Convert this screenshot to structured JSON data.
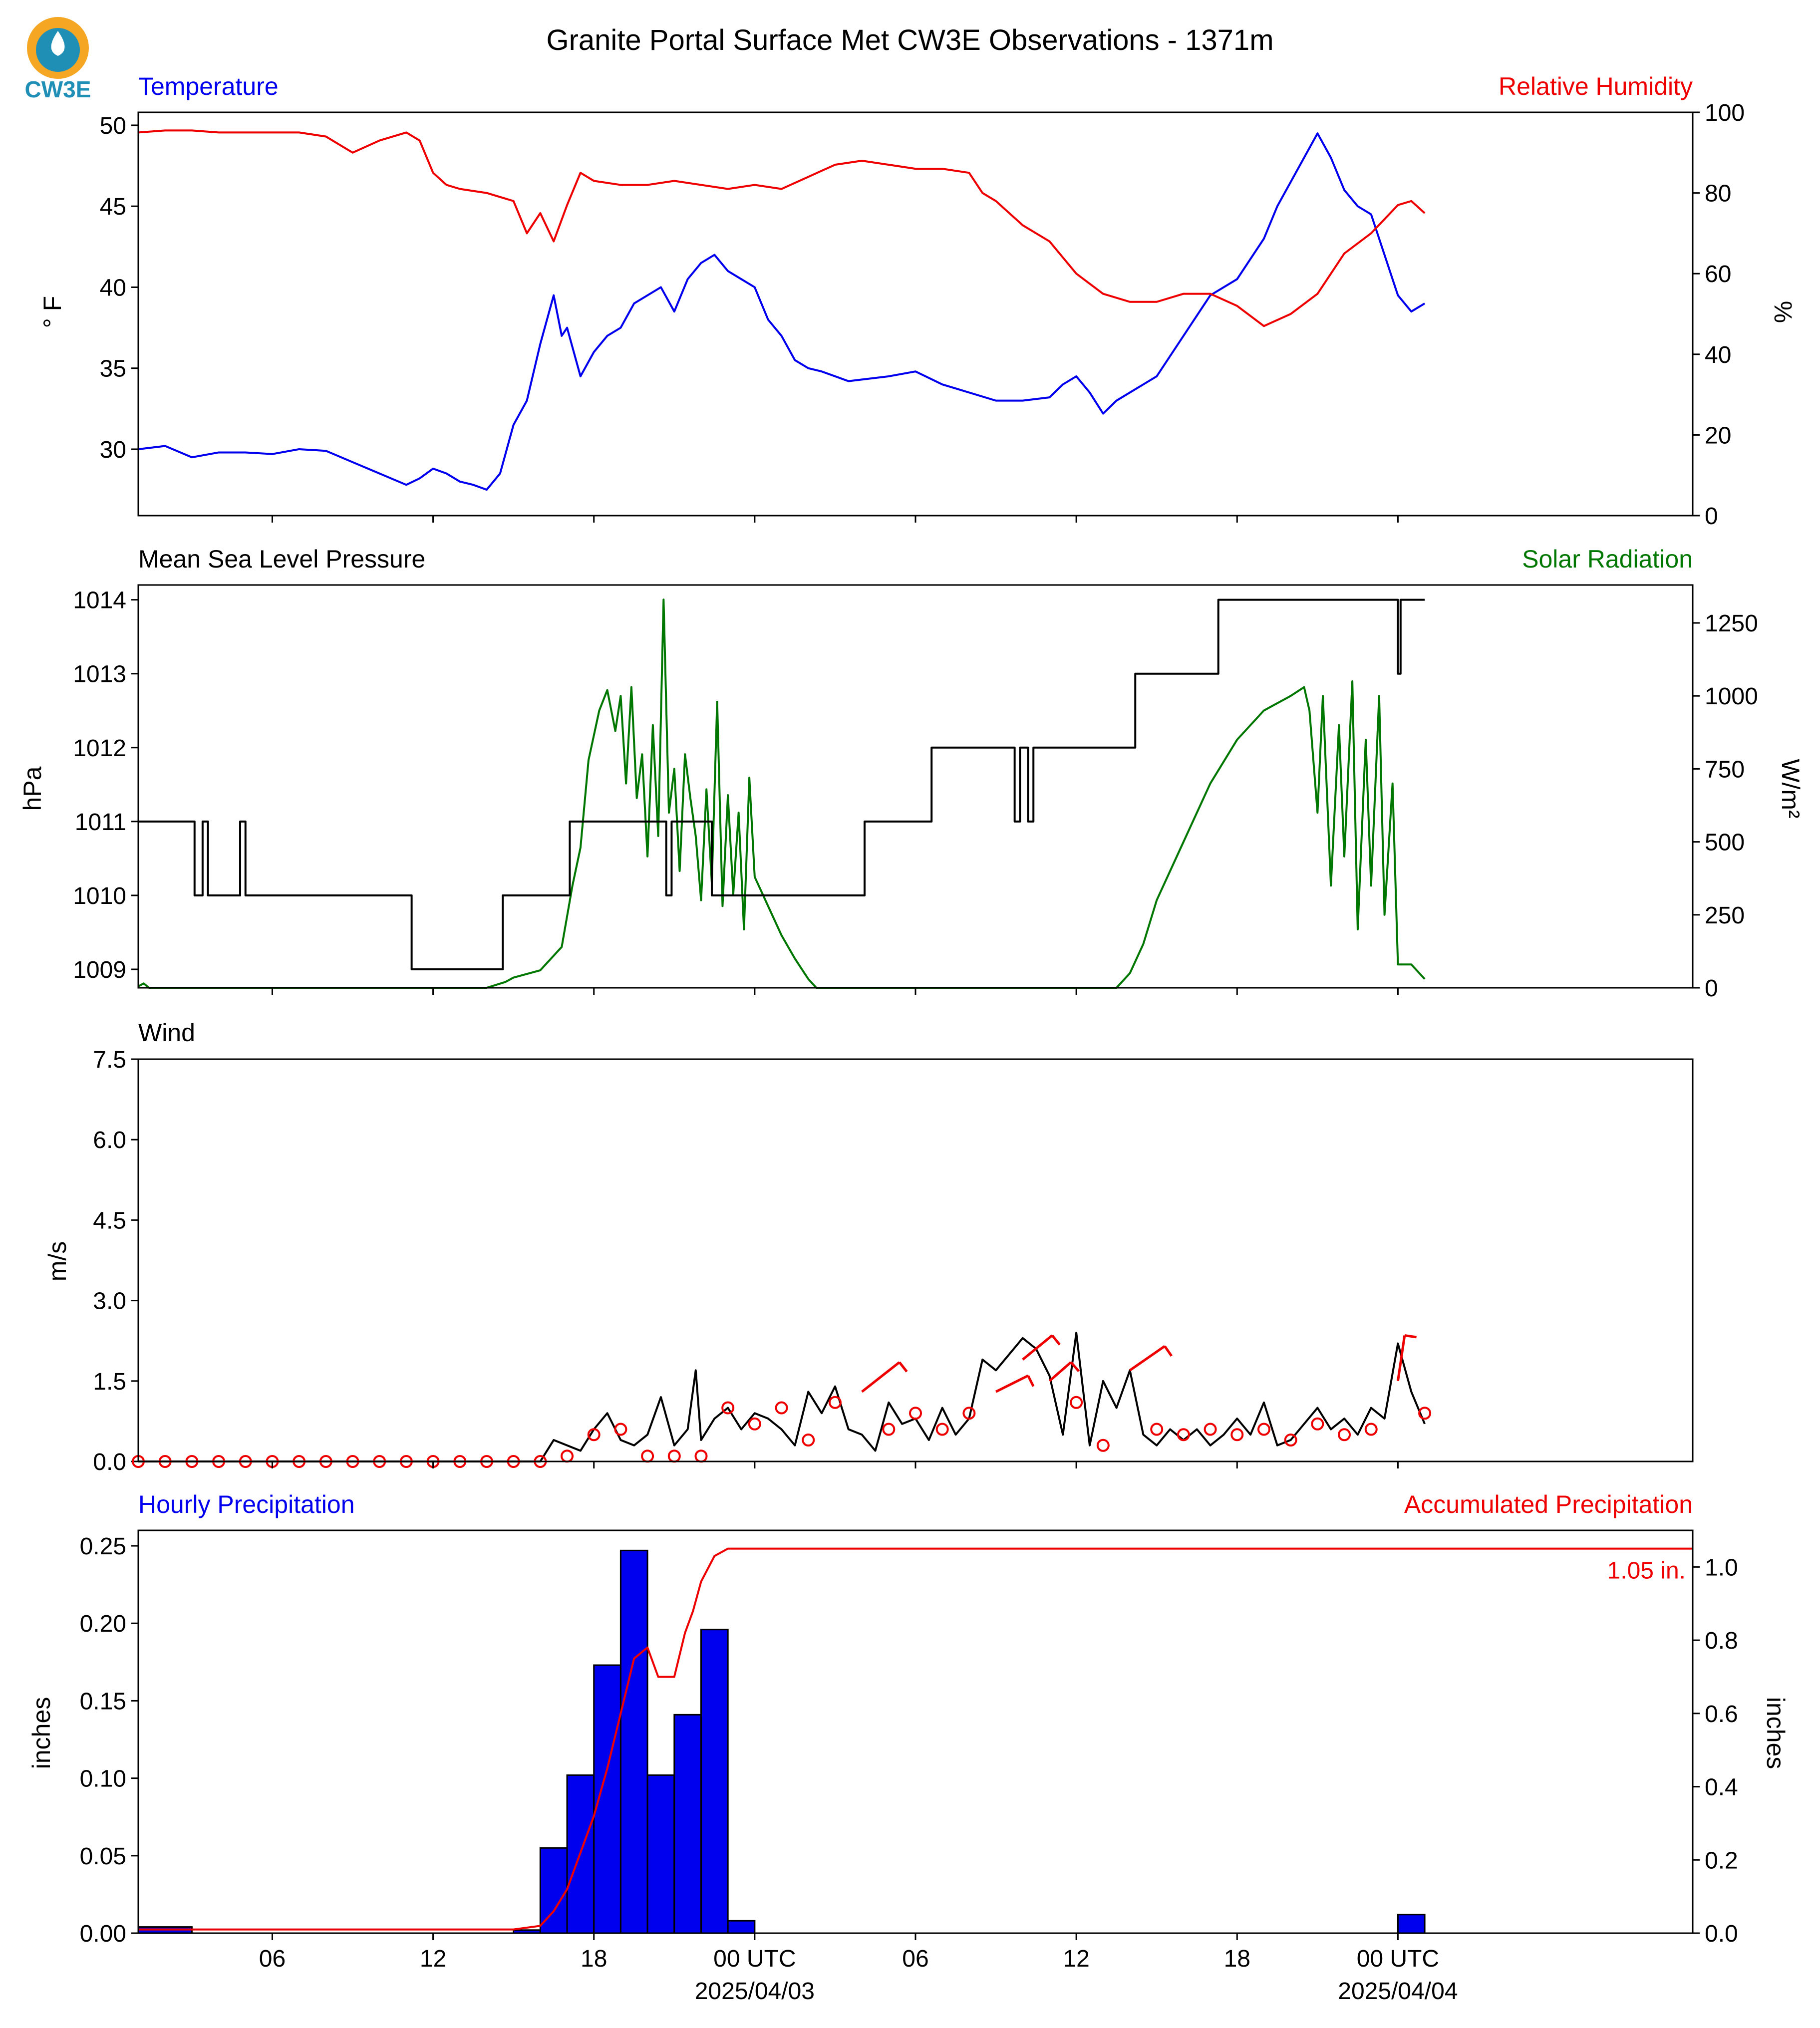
{
  "logo": {
    "text": "CW3E",
    "colors": {
      "ring": "#f5a623",
      "body": "#1f8fb5"
    }
  },
  "title": "Granite Portal Surface Met CW3E Observations - 1371m",
  "time_axis": {
    "range_hours": [
      -23,
      35
    ],
    "ticks": [
      {
        "hour": -18,
        "label": "06",
        "sublabel": ""
      },
      {
        "hour": -12,
        "label": "12",
        "sublabel": ""
      },
      {
        "hour": -6,
        "label": "18",
        "sublabel": ""
      },
      {
        "hour": 0,
        "label": "00 UTC",
        "sublabel": "2025/04/03"
      },
      {
        "hour": 6,
        "label": "06",
        "sublabel": ""
      },
      {
        "hour": 12,
        "label": "12",
        "sublabel": ""
      },
      {
        "hour": 18,
        "label": "18",
        "sublabel": ""
      },
      {
        "hour": 24,
        "label": "00 UTC",
        "sublabel": "2025/04/04"
      }
    ]
  },
  "chart_data": [
    {
      "type": "line",
      "panel": "temperature-humidity",
      "title_left": "Temperature",
      "title_right": "Relative Humidity",
      "ylabel": "° F",
      "ylabel_right": "%",
      "ylim": [
        25.9,
        50.8
      ],
      "ylim_right": [
        0,
        100
      ],
      "yticks": [
        30,
        35,
        40,
        45,
        50
      ],
      "yticks_right": [
        0,
        20,
        40,
        60,
        80,
        100
      ],
      "series": [
        {
          "role": "temperature",
          "axis": "left",
          "color": "#0000ee",
          "x": [
            -23,
            -22,
            -21,
            -20,
            -19,
            -18,
            -17,
            -16,
            -15,
            -14,
            -13,
            -12.5,
            -12,
            -11.5,
            -11,
            -10.5,
            -10,
            -9.5,
            -9,
            -8.5,
            -8,
            -7.5,
            -7.2,
            -7,
            -6.5,
            -6,
            -5.5,
            -5,
            -4.5,
            -4,
            -3.5,
            -3,
            -2.5,
            -2,
            -1.5,
            -1,
            -0.5,
            0,
            0.5,
            1,
            1.5,
            2,
            2.5,
            3,
            3.5,
            4,
            5,
            6,
            7,
            8,
            9,
            10,
            11,
            11.5,
            12,
            12.5,
            13,
            13.5,
            14,
            15,
            16,
            17,
            18,
            19,
            19.5,
            20,
            20.5,
            21,
            21.5,
            22,
            22.5,
            23,
            23.5,
            24,
            24.5,
            25
          ],
          "y": [
            30,
            30.2,
            29.5,
            29.8,
            29.8,
            29.7,
            30,
            29.9,
            29.2,
            28.5,
            27.8,
            28.2,
            28.8,
            28.5,
            28,
            27.8,
            27.5,
            28.5,
            31.5,
            33,
            36.5,
            39.5,
            37,
            37.5,
            34.5,
            36,
            37,
            37.5,
            39,
            39.5,
            40,
            38.5,
            40.5,
            41.5,
            42,
            41,
            40.5,
            40,
            38,
            37,
            35.5,
            35,
            34.8,
            34.5,
            34.2,
            34.3,
            34.5,
            34.8,
            34,
            33.5,
            33,
            33,
            33.2,
            34,
            34.5,
            33.5,
            32.2,
            33,
            33.5,
            34.5,
            37,
            39.5,
            40.5,
            43,
            45,
            46.5,
            48,
            49.5,
            48,
            46,
            45,
            44.5,
            42,
            39.5,
            38.5,
            39
          ]
        },
        {
          "role": "relative-humidity",
          "axis": "right",
          "color": "#ee0000",
          "x": [
            -23,
            -22,
            -21,
            -20,
            -19,
            -18,
            -17,
            -16,
            -15,
            -14,
            -13,
            -12.5,
            -12,
            -11.5,
            -11,
            -10,
            -9,
            -8.5,
            -8,
            -7.5,
            -7,
            -6.5,
            -6,
            -5,
            -4,
            -3,
            -2,
            -1,
            0,
            1,
            2,
            3,
            4,
            5,
            6,
            7,
            8,
            8.5,
            9,
            10,
            11,
            12,
            13,
            14,
            15,
            16,
            17,
            18,
            19,
            20,
            21,
            22,
            23,
            24,
            24.5,
            25
          ],
          "y": [
            95,
            95.5,
            95.5,
            95,
            95,
            95,
            95,
            94,
            90,
            93,
            95,
            93,
            85,
            82,
            81,
            80,
            78,
            70,
            75,
            68,
            77,
            85,
            83,
            82,
            82,
            83,
            82,
            81,
            82,
            81,
            84,
            87,
            88,
            87,
            86,
            86,
            85,
            80,
            78,
            72,
            68,
            60,
            55,
            53,
            53,
            55,
            55,
            52,
            47,
            50,
            55,
            65,
            70,
            77,
            78,
            75
          ]
        }
      ]
    },
    {
      "type": "line",
      "panel": "pressure-solar",
      "title_left": "Mean Sea Level Pressure",
      "title_right": "Solar Radiation",
      "ylabel": "hPa",
      "ylabel_right": "W/m²",
      "ylim": [
        1008.75,
        1014.2
      ],
      "ylim_right": [
        0,
        1380
      ],
      "yticks": [
        1009,
        1010,
        1011,
        1012,
        1013,
        1014
      ],
      "yticks_right": [
        0,
        250,
        500,
        750,
        1000,
        1250
      ],
      "series": [
        {
          "role": "pressure",
          "axis": "left",
          "color": "#000000",
          "step": true,
          "x": [
            -23,
            -21,
            -20.9,
            -20.6,
            -20.4,
            -19.4,
            -19.2,
            -19,
            -16.3,
            -16.1,
            -13,
            -12.8,
            -9.7,
            -9.4,
            -7.2,
            -6.9,
            -3.5,
            -3.3,
            -3.1,
            -1.8,
            -1.6,
            -1.4,
            3.9,
            4.1,
            6.4,
            6.6,
            9.5,
            9.7,
            9.9,
            10.2,
            10.4,
            11,
            14,
            14.2,
            17,
            17.3,
            23.9,
            24,
            24.1,
            25
          ],
          "y": [
            1011,
            1011,
            1010,
            1011,
            1010,
            1010,
            1011,
            1010,
            1010,
            1010,
            1010,
            1009,
            1009,
            1010,
            1010,
            1011,
            1011,
            1010,
            1011,
            1011,
            1010,
            1010,
            1010,
            1011,
            1011,
            1012,
            1012,
            1011,
            1012,
            1011,
            1012,
            1012,
            1012,
            1013,
            1013,
            1014,
            1014,
            1013,
            1014,
            1014
          ]
        },
        {
          "role": "solar-radiation",
          "axis": "right",
          "color": "#007700",
          "x": [
            -23,
            -22.8,
            -22.6,
            -10,
            -9.3,
            -9,
            -8,
            -7.2,
            -6.8,
            -6.5,
            -6.2,
            -5.8,
            -5.5,
            -5.2,
            -5,
            -4.8,
            -4.6,
            -4.4,
            -4.2,
            -4,
            -3.8,
            -3.6,
            -3.4,
            -3.2,
            -3,
            -2.8,
            -2.6,
            -2.4,
            -2.2,
            -2,
            -1.8,
            -1.6,
            -1.4,
            -1.2,
            -1,
            -0.8,
            -0.6,
            -0.4,
            -0.2,
            0,
            0.5,
            1,
            1.5,
            2,
            2.3,
            13.5,
            14,
            14.5,
            15,
            16,
            17,
            18,
            19,
            20,
            20.5,
            20.7,
            21,
            21.2,
            21.5,
            21.8,
            22,
            22.3,
            22.5,
            22.8,
            23,
            23.3,
            23.5,
            23.8,
            24,
            24.5,
            25
          ],
          "y": [
            5,
            15,
            0,
            0,
            20,
            35,
            60,
            140,
            350,
            480,
            780,
            950,
            1020,
            880,
            1000,
            700,
            1030,
            650,
            800,
            450,
            900,
            520,
            1330,
            600,
            750,
            400,
            800,
            650,
            520,
            300,
            680,
            360,
            980,
            280,
            660,
            320,
            600,
            200,
            720,
            380,
            280,
            180,
            100,
            30,
            0,
            0,
            50,
            150,
            300,
            500,
            700,
            850,
            950,
            1000,
            1030,
            950,
            600,
            1000,
            350,
            900,
            450,
            1050,
            200,
            850,
            350,
            1000,
            250,
            700,
            80,
            80,
            30
          ]
        }
      ]
    },
    {
      "type": "line",
      "panel": "wind",
      "title_left": "Wind",
      "ylabel": "m/s",
      "ylim": [
        0,
        7.5
      ],
      "yticks": [
        0.0,
        1.5,
        3.0,
        4.5,
        6.0,
        7.5
      ],
      "series": [
        {
          "role": "wind-speed",
          "axis": "left",
          "color": "#000000",
          "x": [
            -23,
            -8,
            -7.5,
            -7,
            -6.5,
            -6,
            -5.5,
            -5,
            -4.5,
            -4,
            -3.5,
            -3,
            -2.5,
            -2.2,
            -2,
            -1.5,
            -1,
            -0.5,
            0,
            0.5,
            1,
            1.5,
            2,
            2.5,
            3,
            3.5,
            4,
            4.5,
            5,
            5.5,
            6,
            6.5,
            7,
            7.5,
            8,
            8.5,
            9,
            9.5,
            10,
            10.5,
            11,
            11.5,
            12,
            12.5,
            13,
            13.5,
            14,
            14.5,
            15,
            15.5,
            16,
            16.5,
            17,
            17.5,
            18,
            18.5,
            19,
            19.5,
            20,
            20.5,
            21,
            21.5,
            22,
            22.5,
            23,
            23.5,
            24,
            24.5,
            25
          ],
          "y": [
            0,
            0,
            0.4,
            0.3,
            0.2,
            0.6,
            0.9,
            0.4,
            0.3,
            0.5,
            1.2,
            0.3,
            0.6,
            1.7,
            0.4,
            0.8,
            1.0,
            0.6,
            0.9,
            0.8,
            0.6,
            0.3,
            1.3,
            0.9,
            1.4,
            0.6,
            0.5,
            0.2,
            1.1,
            0.7,
            0.8,
            0.4,
            1.0,
            0.5,
            0.8,
            1.9,
            1.7,
            2.0,
            2.3,
            2.1,
            1.6,
            0.5,
            2.4,
            0.3,
            1.5,
            1.0,
            1.7,
            0.5,
            0.3,
            0.6,
            0.4,
            0.6,
            0.3,
            0.5,
            0.8,
            0.5,
            1.1,
            0.3,
            0.4,
            0.7,
            1.0,
            0.6,
            0.8,
            0.5,
            1.0,
            0.8,
            2.2,
            1.3,
            0.7
          ]
        }
      ],
      "wind_markers_calm": {
        "color": "#ee0000",
        "hours": [
          -23,
          -22,
          -21,
          -20,
          -19,
          -18,
          -17,
          -16,
          -15,
          -14,
          -13,
          -12,
          -11,
          -10,
          -9,
          -8,
          -7,
          -6,
          -5,
          -4,
          -3,
          -2,
          -1,
          0,
          1,
          2,
          3,
          5,
          6,
          7,
          8,
          12,
          13,
          15,
          16,
          17,
          18,
          19,
          20,
          21,
          22,
          23,
          25
        ],
        "speeds": [
          0,
          0,
          0,
          0,
          0,
          0,
          0,
          0,
          0,
          0,
          0,
          0,
          0,
          0,
          0,
          0,
          0.1,
          0.5,
          0.6,
          0.1,
          0.1,
          0.1,
          1.0,
          0.7,
          1.0,
          0.4,
          1.1,
          0.6,
          0.9,
          0.6,
          0.9,
          1.1,
          0.3,
          0.6,
          0.5,
          0.6,
          0.5,
          0.6,
          0.4,
          0.7,
          0.5,
          0.6,
          0.9
        ]
      },
      "wind_barbs": {
        "color": "#ee0000",
        "items": [
          {
            "hour": 4,
            "speed": 1.3,
            "dx": 1.4,
            "dy": 0.55
          },
          {
            "hour": 9,
            "speed": 1.3,
            "dx": 1.2,
            "dy": 0.3
          },
          {
            "hour": 10,
            "speed": 1.9,
            "dx": 1.1,
            "dy": 0.45
          },
          {
            "hour": 11,
            "speed": 1.5,
            "dx": 0.8,
            "dy": 0.35
          },
          {
            "hour": 14,
            "speed": 1.7,
            "dx": 1.3,
            "dy": 0.45
          },
          {
            "hour": 24,
            "speed": 1.5,
            "dx": 0.25,
            "dy": 0.85
          }
        ]
      }
    },
    {
      "type": "bar",
      "panel": "precipitation",
      "title_left": "Hourly Precipitation",
      "title_right": "Accumulated Precipitation",
      "ylabel": "inches",
      "ylabel_right": "inches",
      "ylim": [
        0,
        0.26
      ],
      "ylim_right": [
        0,
        1.1
      ],
      "yticks": [
        0.0,
        0.05,
        0.1,
        0.15,
        0.2,
        0.25
      ],
      "yticks_right": [
        0.0,
        0.2,
        0.4,
        0.6,
        0.8,
        1.0
      ],
      "bar_color": "#0000ee",
      "bars": [
        {
          "start": -23,
          "end": -21,
          "value": 0.004
        },
        {
          "start": -9,
          "end": -8,
          "value": 0.002
        },
        {
          "start": -8,
          "end": -7,
          "value": 0.055
        },
        {
          "start": -7,
          "end": -6,
          "value": 0.102
        },
        {
          "start": -6,
          "end": -5,
          "value": 0.173
        },
        {
          "start": -5,
          "end": -4,
          "value": 0.247
        },
        {
          "start": -4,
          "end": -3,
          "value": 0.102
        },
        {
          "start": -3,
          "end": -2,
          "value": 0.141
        },
        {
          "start": -2,
          "end": -1,
          "value": 0.196
        },
        {
          "start": -1,
          "end": 0,
          "value": 0.008
        },
        {
          "start": 24,
          "end": 25,
          "value": 0.012
        }
      ],
      "accumulated": {
        "color": "#ee0000",
        "x": [
          -23,
          -21,
          -9,
          -8,
          -7.5,
          -7,
          -6.5,
          -6,
          -5.5,
          -5,
          -4.5,
          -4,
          -3.6,
          -3,
          -2.6,
          -2.3,
          -2,
          -1.5,
          -1,
          35
        ],
        "y": [
          0.01,
          0.01,
          0.01,
          0.02,
          0.06,
          0.12,
          0.22,
          0.32,
          0.45,
          0.6,
          0.75,
          0.78,
          0.7,
          0.7,
          0.82,
          0.88,
          0.96,
          1.03,
          1.05,
          1.05
        ]
      },
      "total_label": "1.05 in."
    }
  ]
}
